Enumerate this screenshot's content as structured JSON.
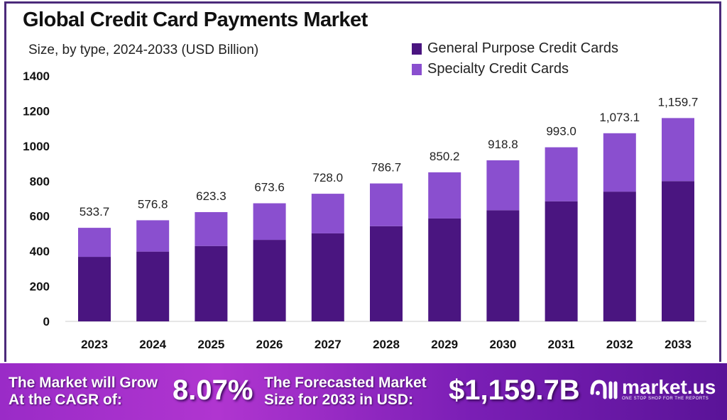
{
  "chart_data": {
    "type": "bar",
    "stacked": true,
    "title": "Global Credit Card Payments Market",
    "subtitle": "Size, by type, 2024-2033 (USD Billion)",
    "categories": [
      "2023",
      "2024",
      "2025",
      "2026",
      "2027",
      "2028",
      "2029",
      "2030",
      "2031",
      "2032",
      "2033"
    ],
    "series": [
      {
        "name": "General Purpose Credit Cards",
        "color": "#4a1580",
        "values": [
          368,
          398,
          430,
          465,
          502,
          543,
          587,
          634,
          685,
          740,
          800
        ]
      },
      {
        "name": "Specialty Credit Cards",
        "color": "#8a4fcf",
        "values": [
          165.7,
          178.8,
          193.3,
          208.6,
          226.0,
          243.7,
          263.2,
          284.8,
          308.0,
          333.1,
          359.7
        ]
      }
    ],
    "totals": [
      533.7,
      576.8,
      623.3,
      673.6,
      728.0,
      786.7,
      850.2,
      918.8,
      993.0,
      1073.1,
      1159.7
    ],
    "total_labels": [
      "533.7",
      "576.8",
      "623.3",
      "673.6",
      "728.0",
      "786.7",
      "850.2",
      "918.8",
      "993.0",
      "1,073.1",
      "1,159.7"
    ],
    "ylim": [
      0,
      1400
    ],
    "yticks": [
      "0",
      "200",
      "400",
      "600",
      "800",
      "1000",
      "1200",
      "1400"
    ],
    "grid": false,
    "legend": "top-right"
  },
  "banner": {
    "cagr_label_1": "The Market will Grow",
    "cagr_label_2": "At the CAGR of:",
    "cagr_value": "8.07%",
    "forecast_label_1": "The Forecasted Market",
    "forecast_label_2": "Size for 2033 in USD:",
    "forecast_value": "$1,159.7B",
    "logo_text": "market.us",
    "logo_tagline": "ONE STOP SHOP FOR THE REPORTS"
  }
}
